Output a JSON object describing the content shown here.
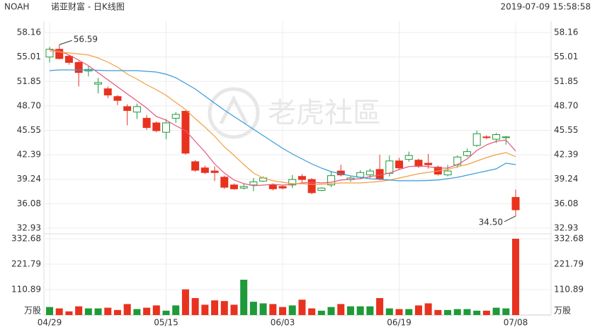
{
  "chart_data": {
    "type": "candlestick",
    "ticker": "NOAH",
    "subtitle": "诺亚财富 - 日K线图",
    "timestamp": "2019-07-09 15:58:58",
    "watermark": "老虎社區",
    "categories": [
      "04/29",
      null,
      null,
      null,
      null,
      null,
      null,
      null,
      null,
      null,
      null,
      null,
      "05/15",
      null,
      null,
      null,
      null,
      null,
      null,
      null,
      null,
      null,
      null,
      null,
      "06/03",
      null,
      null,
      null,
      null,
      null,
      null,
      null,
      null,
      null,
      null,
      null,
      "06/19",
      null,
      null,
      null,
      null,
      null,
      null,
      null,
      null,
      null,
      null,
      null,
      "07/08"
    ],
    "open": [
      55.0,
      56.0,
      55.1,
      54.3,
      53.2,
      51.5,
      50.9,
      49.9,
      48.6,
      47.9,
      47.1,
      46.5,
      45.3,
      47.1,
      48.0,
      41.5,
      40.7,
      40.3,
      39.5,
      38.5,
      38.1,
      38.5,
      39.0,
      38.5,
      38.3,
      38.5,
      39.6,
      39.2,
      37.8,
      38.5,
      40.3,
      39.2,
      39.5,
      39.8,
      40.5,
      40.0,
      41.6,
      41.8,
      41.7,
      41.3,
      40.8,
      39.8,
      41.1,
      42.3,
      43.6,
      44.7,
      44.4,
      44.6,
      36.9
    ],
    "close": [
      56.0,
      54.8,
      54.3,
      53.0,
      53.4,
      51.7,
      50.1,
      49.4,
      48.1,
      48.6,
      45.9,
      45.5,
      46.5,
      47.6,
      42.6,
      40.4,
      40.1,
      40.1,
      38.2,
      38.0,
      38.3,
      38.9,
      39.4,
      38.0,
      38.1,
      39.2,
      39.2,
      37.5,
      38.1,
      39.7,
      39.8,
      39.4,
      40.1,
      40.3,
      39.3,
      41.6,
      40.7,
      42.3,
      40.9,
      41.1,
      39.9,
      40.3,
      42.1,
      42.8,
      45.1,
      44.6,
      45.0,
      44.7,
      35.3
    ],
    "high": [
      56.3,
      56.59,
      55.3,
      54.5,
      53.8,
      52.3,
      51.2,
      50.1,
      48.9,
      49.0,
      47.5,
      46.7,
      47.0,
      47.9,
      48.1,
      41.7,
      41.0,
      40.9,
      39.7,
      38.7,
      38.6,
      39.4,
      39.6,
      38.7,
      38.5,
      39.8,
      39.9,
      39.4,
      38.2,
      40.3,
      41.1,
      39.6,
      40.4,
      40.6,
      42.4,
      42.3,
      42.0,
      42.8,
      41.9,
      42.5,
      41.0,
      41.1,
      42.3,
      43.2,
      45.5,
      44.9,
      45.2,
      44.8,
      37.9
    ],
    "low": [
      54.3,
      54.7,
      54.0,
      51.2,
      52.5,
      50.3,
      49.7,
      48.8,
      46.2,
      47.0,
      45.6,
      45.3,
      44.4,
      46.5,
      42.4,
      40.2,
      39.9,
      39.0,
      38.0,
      37.9,
      37.9,
      37.7,
      38.9,
      37.8,
      37.9,
      38.1,
      38.7,
      37.3,
      37.7,
      38.2,
      39.6,
      38.9,
      39.3,
      39.4,
      39.1,
      39.6,
      40.5,
      41.5,
      40.7,
      40.6,
      39.7,
      39.6,
      40.7,
      42.1,
      43.4,
      44.4,
      43.9,
      43.7,
      34.5
    ],
    "volume": [
      35,
      29,
      16,
      38,
      29,
      29,
      32,
      22,
      48,
      26,
      32,
      42,
      19,
      42,
      112,
      74,
      45,
      64,
      61,
      45,
      154,
      58,
      51,
      48,
      35,
      42,
      67,
      29,
      19,
      35,
      48,
      38,
      38,
      38,
      74,
      29,
      26,
      26,
      42,
      51,
      22,
      22,
      26,
      26,
      19,
      19,
      32,
      29,
      332.68
    ],
    "ma_lines": [
      {
        "color": "#e8557a",
        "values": [
          55.97,
          55.79,
          55.25,
          54.61,
          53.88,
          52.97,
          52.06,
          51.15,
          50.24,
          49.33,
          48.41,
          47.32,
          46.87,
          46.14,
          45.5,
          44.13,
          42.77,
          41.22,
          40.03,
          39.13,
          38.67,
          38.4,
          38.49,
          38.58,
          38.49,
          38.58,
          38.76,
          38.85,
          38.76,
          38.85,
          39.13,
          39.22,
          39.31,
          39.58,
          39.76,
          40.04,
          40.49,
          40.86,
          40.95,
          40.86,
          40.67,
          40.67,
          41.13,
          41.86,
          42.95,
          43.68,
          44.13,
          44.31,
          42.86
        ]
      },
      {
        "color": "#f0a040",
        "values": [
          55.79,
          55.65,
          55.52,
          55.39,
          55.25,
          54.88,
          54.33,
          53.7,
          52.79,
          52.15,
          51.42,
          50.78,
          50.05,
          49.14,
          48.24,
          47.05,
          45.96,
          44.77,
          43.4,
          42.31,
          41.13,
          40.03,
          39.4,
          39.04,
          38.85,
          38.67,
          38.67,
          38.58,
          38.58,
          38.67,
          38.76,
          38.76,
          38.76,
          38.85,
          38.94,
          39.13,
          39.4,
          39.67,
          39.94,
          40.13,
          40.31,
          40.49,
          40.86,
          41.13,
          41.58,
          42.04,
          42.4,
          42.68,
          42.13
        ]
      },
      {
        "color": "#3a9ad9",
        "values": [
          53.24,
          53.33,
          53.33,
          53.33,
          53.33,
          53.29,
          53.24,
          53.24,
          53.24,
          53.24,
          53.15,
          53.06,
          52.79,
          52.33,
          51.6,
          50.87,
          49.96,
          49.05,
          48.14,
          47.32,
          46.5,
          45.68,
          44.86,
          44.04,
          43.22,
          42.5,
          41.86,
          41.22,
          40.67,
          40.22,
          39.94,
          39.67,
          39.49,
          39.31,
          39.22,
          39.13,
          39.04,
          39.04,
          39.04,
          39.08,
          39.13,
          39.31,
          39.49,
          39.76,
          40.04,
          40.31,
          40.58,
          41.31,
          41.13
        ]
      }
    ],
    "annotations": [
      {
        "value": 56.59,
        "label": "56.59"
      },
      {
        "value": 34.5,
        "label": "34.50"
      }
    ],
    "up_color": "#1f9a3a",
    "down_color": "#e8321f",
    "ylim": [
      32.93,
      58.16
    ],
    "yticks": [
      58.16,
      55.01,
      51.85,
      {
        "value": 48.7,
        "label": "48.70"
      },
      45.55,
      42.39,
      39.24,
      36.08,
      32.93
    ],
    "volume_ylim": [
      0,
      332.68
    ],
    "volume_yticks": [
      332.68,
      221.79,
      110.89
    ],
    "volume_unit": "万股",
    "grid": true
  }
}
